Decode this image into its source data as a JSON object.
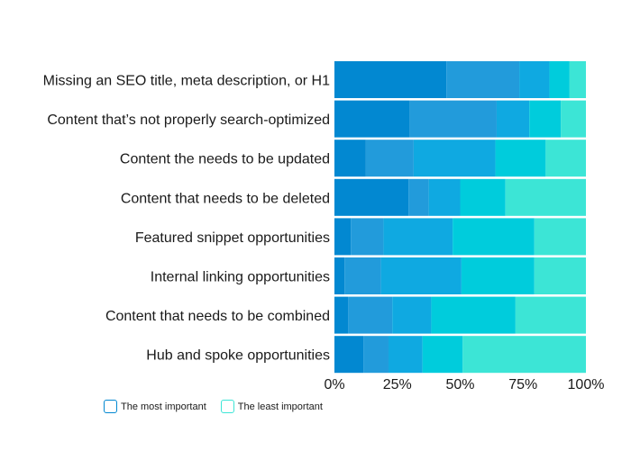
{
  "chart_data": {
    "type": "bar",
    "orientation": "horizontal",
    "stacked": true,
    "normalized_percent": true,
    "categories": [
      "Missing an SEO title, meta description, or H1",
      "Content that’s not properly search-optimized",
      "Content the needs to be updated",
      "Content that needs to be deleted",
      "Featured snippet opportunities",
      "Internal linking opportunities",
      "Content that needs to be combined",
      "Hub and spoke opportunities"
    ],
    "series": [
      {
        "values": [
          44.5,
          30,
          12.5,
          29.5,
          6.5,
          4,
          5.5,
          11.5
        ]
      },
      {
        "values": [
          29,
          34.5,
          19,
          8,
          13,
          14.5,
          17.5,
          10
        ]
      },
      {
        "values": [
          12,
          13,
          32.5,
          12.5,
          27.5,
          32,
          15.5,
          13.5
        ]
      },
      {
        "values": [
          8,
          12.5,
          20,
          18,
          32.5,
          29,
          33.5,
          16
        ]
      },
      {
        "values": [
          6.5,
          10,
          16,
          32,
          20.5,
          20.5,
          28,
          49
        ]
      }
    ],
    "colors": [
      "#0288d1",
      "#229bdb",
      "#0fa9e1",
      "#00ccdc",
      "#3ce5d6"
    ],
    "xlim": [
      0,
      100
    ],
    "xticks": [
      "0%",
      "25%",
      "50%",
      "75%",
      "100%"
    ],
    "title": "",
    "xlabel": "",
    "ylabel": "",
    "grid": false,
    "legend": {
      "placement": "bottom-left",
      "items": [
        {
          "label": "The most important",
          "color": "#0288d1"
        },
        {
          "label": "The least important",
          "color": "#3ce5d6"
        }
      ]
    }
  }
}
